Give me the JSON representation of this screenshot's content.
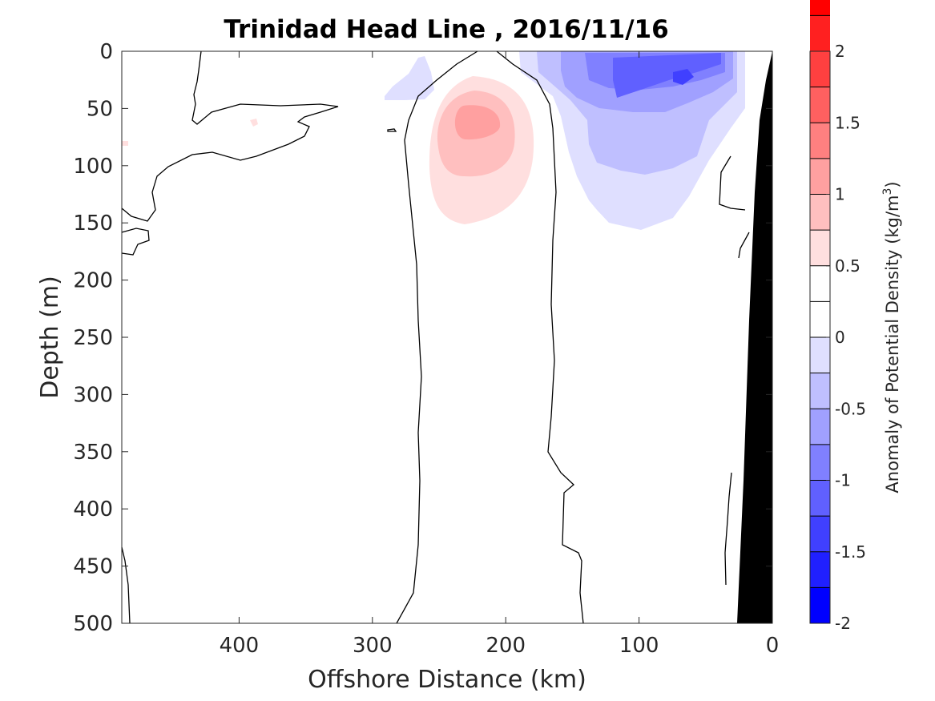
{
  "chart_data": {
    "type": "heatmap",
    "title": "Trinidad Head Line , 2016/11/16",
    "xlabel": "Offshore Distance (km)",
    "ylabel": "Depth (m)",
    "xlim": [
      488,
      0
    ],
    "ylim": [
      0,
      500
    ],
    "x_reversed": true,
    "y_reversed": true,
    "x_ticks": [
      "400",
      "300",
      "200",
      "100",
      "0"
    ],
    "x_tick_values": [
      400,
      300,
      200,
      100,
      0
    ],
    "y_ticks": [
      "0",
      "50",
      "100",
      "150",
      "200",
      "250",
      "300",
      "350",
      "400",
      "450",
      "500"
    ],
    "y_tick_values": [
      0,
      50,
      100,
      150,
      200,
      250,
      300,
      350,
      400,
      450,
      500
    ],
    "colorbar": {
      "label": "Anomaly of Potential Density (kg/m",
      "label_superscript": "3",
      "label_suffix": ")",
      "range": [
        -2,
        2
      ],
      "step": 0.25,
      "ticks": [
        "-2",
        "-1.5",
        "-1",
        "-0.5",
        "0",
        "0.5",
        "1",
        "1.5",
        "2"
      ],
      "tick_values": [
        -2,
        -1.5,
        -1,
        -0.5,
        0,
        0.5,
        1,
        1.5,
        2
      ],
      "colors": [
        "#0000ff",
        "#2020ff",
        "#4040ff",
        "#6060ff",
        "#8080ff",
        "#a0a0ff",
        "#bfbfff",
        "#dfdfff",
        "#ffffff",
        "#ffffff",
        "#ffdfdf",
        "#ffbfbf",
        "#ffa0a0",
        "#ff8080",
        "#ff6060",
        "#ff4040",
        "#ff2020",
        "#ff0000"
      ]
    },
    "features": [
      {
        "name": "positive anomaly core",
        "offshore_km": [
          268,
          178
        ],
        "depth_m": [
          20,
          150
        ],
        "max_anomaly": 0.75
      },
      {
        "name": "negative anomaly core",
        "offshore_km": [
          190,
          20
        ],
        "depth_m": [
          0,
          155
        ],
        "min_anomaly": -1.5
      },
      {
        "name": "small negative patch",
        "offshore_km": [
          290,
          255
        ],
        "depth_m": [
          5,
          42
        ],
        "min_anomaly": -0.25
      },
      {
        "name": "seafloor",
        "color": "#000000"
      }
    ],
    "grid": false
  }
}
